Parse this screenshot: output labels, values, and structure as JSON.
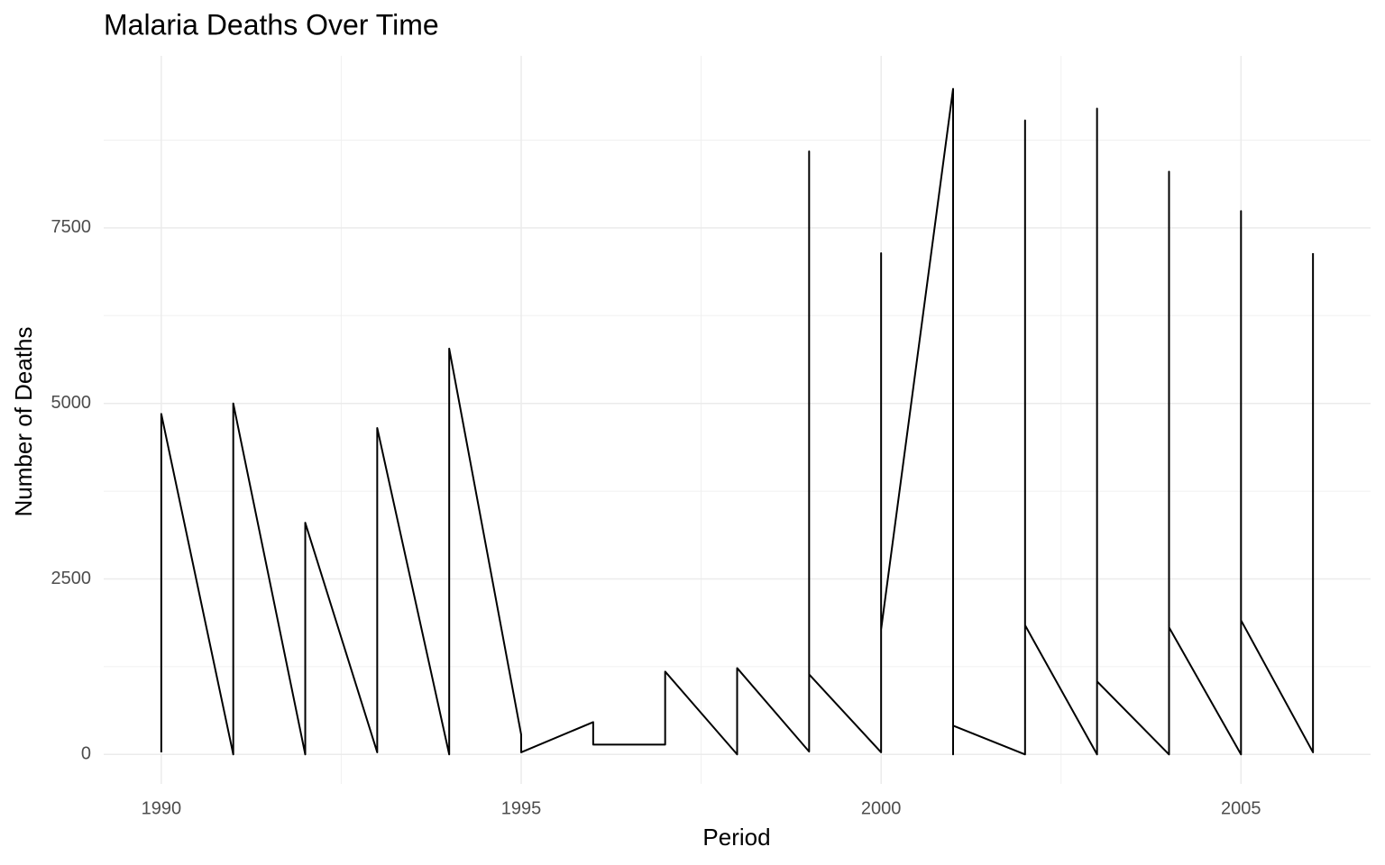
{
  "chart_data": {
    "type": "line",
    "title": "Malaria Deaths Over Time",
    "x_label": "Period",
    "y_label": "Number of Deaths",
    "x": [
      1990,
      1990,
      1991,
      1991,
      1992,
      1992,
      1993,
      1993,
      1994,
      1994,
      1995,
      1995,
      1996,
      1996,
      1997,
      1997,
      1998,
      1998,
      1999,
      1999,
      1999,
      2000,
      2000,
      2000,
      2001,
      2001,
      2001,
      2002,
      2002,
      2002,
      2003,
      2003,
      2003,
      2004,
      2004,
      2004,
      2005,
      2005,
      2005,
      2006,
      2006
    ],
    "values": [
      30,
      4850,
      0,
      5000,
      0,
      3300,
      30,
      4650,
      0,
      5780,
      280,
      30,
      460,
      140,
      140,
      1180,
      0,
      1230,
      40,
      8590,
      1140,
      30,
      7140,
      1780,
      9480,
      0,
      410,
      0,
      9030,
      1840,
      0,
      9200,
      1040,
      0,
      8300,
      1810,
      0,
      7740,
      1910,
      30,
      7140
    ],
    "color": "#000000",
    "xlim": [
      1989.2,
      2006.8
    ],
    "xticks": [
      1990,
      1995,
      2000,
      2005
    ],
    "ylim": [
      -420,
      9950
    ],
    "yticks": [
      0,
      2500,
      5000,
      7500
    ],
    "grid": true
  }
}
